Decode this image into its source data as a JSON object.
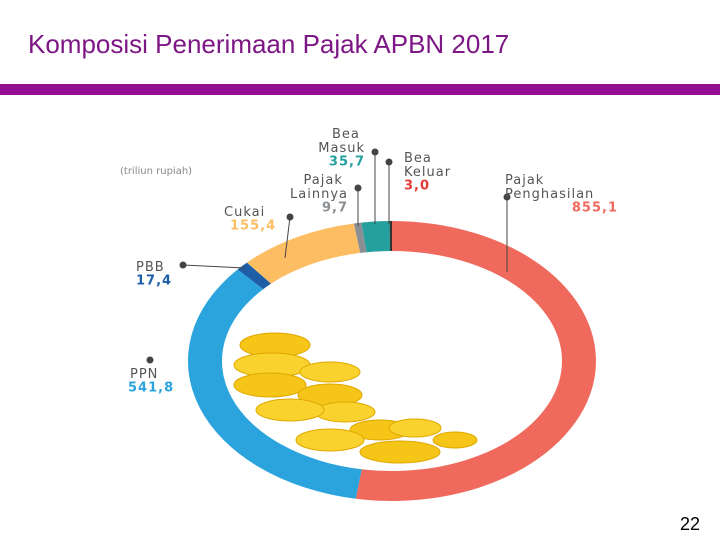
{
  "title": "Komposisi Penerimaan Pajak APBN 2017",
  "page_number": "22",
  "chart_data": {
    "type": "donut",
    "subtitle": "(triliun rupiah)",
    "categories": [
      "Pajak Penghasilan",
      "PPN",
      "PBB",
      "Cukai",
      "Pajak Lainnya",
      "Bea Masuk",
      "Bea Keluar"
    ],
    "values": [
      855.1,
      541.8,
      17.4,
      155.4,
      9.7,
      35.7,
      3.0
    ],
    "value_labels": [
      "855,1",
      "541,8",
      "17,4",
      "155,4",
      "9,7",
      "35,7",
      "3,0"
    ],
    "colors": [
      "#ef6a5d",
      "#2ba4de",
      "#1e5ea8",
      "#fdbd62",
      "#8a8f93",
      "#24a19f",
      "#333333"
    ]
  }
}
